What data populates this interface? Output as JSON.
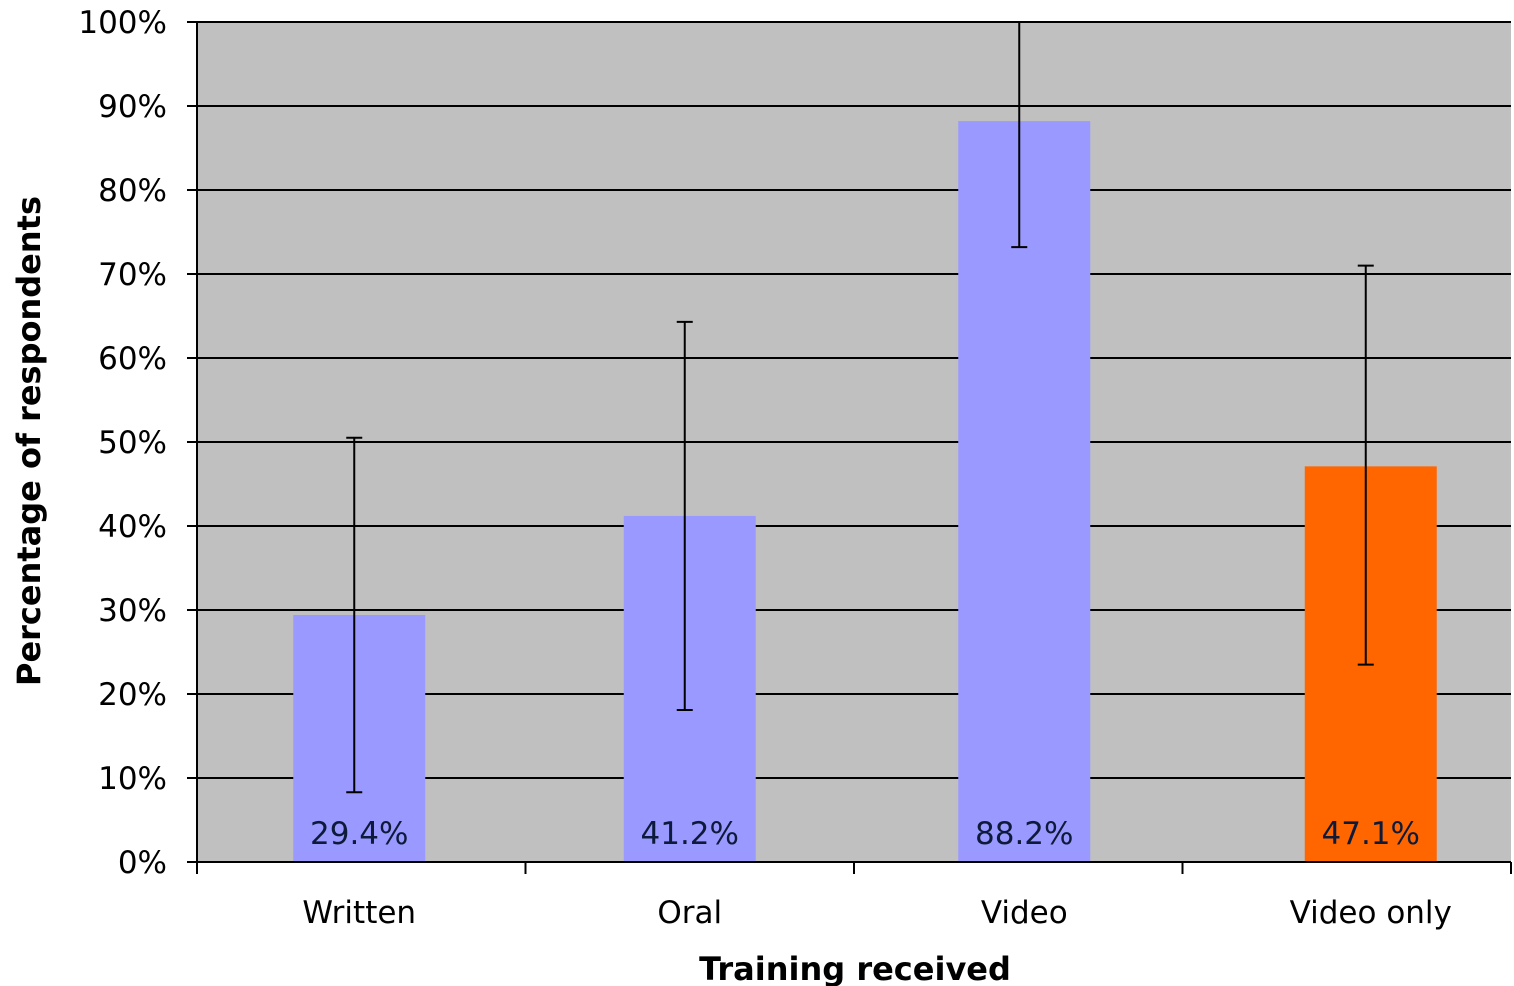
{
  "chart_data": {
    "type": "bar",
    "xlabel": "Training received",
    "ylabel": "Percentage of respondents",
    "categories": [
      "Written",
      "Oral",
      "Video",
      "Video only"
    ],
    "values": [
      29.4,
      41.2,
      88.2,
      47.1
    ],
    "data_labels": [
      "29.4%",
      "41.2%",
      "88.2%",
      "47.1%"
    ],
    "error_bars": [
      {
        "low": 8.3,
        "high": 50.5
      },
      {
        "low": 18.1,
        "high": 64.3
      },
      {
        "low": 73.2,
        "high": 100.0
      },
      {
        "low": 23.5,
        "high": 71.0
      }
    ],
    "ylim": [
      0,
      100
    ],
    "yticks": [
      0,
      10,
      20,
      30,
      40,
      50,
      60,
      70,
      80,
      90,
      100
    ],
    "ytick_labels": [
      "0%",
      "10%",
      "20%",
      "30%",
      "40%",
      "50%",
      "60%",
      "70%",
      "80%",
      "90%",
      "100%"
    ],
    "grid": true,
    "legend": "none",
    "colors": {
      "bar_default": "#9999ff",
      "bar_highlight": "#ff6600",
      "plot_background": "#c0c0c0",
      "gridline": "#000000"
    },
    "bar_colors": [
      "#9999ff",
      "#9999ff",
      "#9999ff",
      "#ff6600"
    ]
  }
}
